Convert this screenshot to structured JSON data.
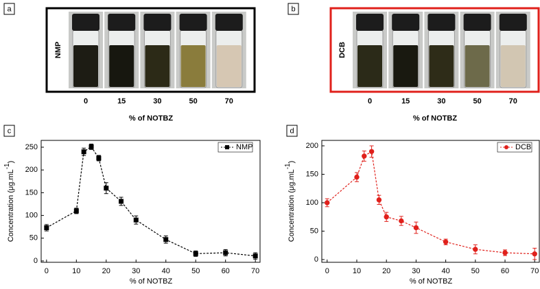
{
  "photo_panels": [
    {
      "label": "a",
      "solvent": "NMP",
      "color": "#000000",
      "vial_labels": [
        0,
        15,
        30,
        50,
        70
      ],
      "xlabel": "% of NOTBZ"
    },
    {
      "label": "b",
      "solvent": "DCB",
      "color": "#e0201b",
      "vial_labels": [
        0,
        15,
        30,
        50,
        70
      ],
      "xlabel": "% of NOTBZ"
    }
  ],
  "chart_data": [
    {
      "type": "line",
      "panel": "c",
      "xlabel": "% of NOTBZ",
      "ylabel": {
        "text": "Concentration (μg.mL",
        "superscript": "-1",
        "end": ")"
      },
      "x": [
        0,
        10,
        12.5,
        15,
        17.5,
        20,
        25,
        30,
        40,
        50,
        60,
        70
      ],
      "series": [
        {
          "name": "NMP",
          "color": "#000000",
          "marker": "square",
          "values": [
            73,
            110,
            240,
            251,
            226,
            160,
            131,
            90,
            47,
            16,
            18,
            11
          ],
          "errors": [
            7,
            6,
            8,
            6,
            6,
            12,
            9,
            9,
            8,
            6,
            7,
            7
          ]
        }
      ],
      "xlim": [
        -1.8,
        71.8
      ],
      "xticks": [
        0,
        10,
        20,
        30,
        40,
        50,
        60,
        70
      ],
      "ylim": [
        -3,
        265
      ],
      "yticks": [
        0,
        50,
        100,
        150,
        200,
        250
      ],
      "legend": "upper right"
    },
    {
      "type": "line",
      "panel": "d",
      "xlabel": "% of NOTBZ",
      "ylabel": {
        "text": "Concentration (μg.mL",
        "superscript": "-1",
        "end": ")"
      },
      "x": [
        0,
        10,
        12.5,
        15,
        17.5,
        20,
        25,
        30,
        40,
        50,
        60,
        70
      ],
      "series": [
        {
          "name": "DCB",
          "color": "#e0201b",
          "marker": "circle",
          "values": [
            100,
            145,
            182,
            190,
            105,
            75,
            68,
            56,
            31,
            18,
            12,
            10
          ],
          "errors": [
            7,
            8,
            9,
            10,
            8,
            8,
            8,
            10,
            5,
            8,
            5,
            10
          ]
        }
      ],
      "xlim": [
        -1.8,
        71.8
      ],
      "xticks": [
        0,
        10,
        20,
        30,
        40,
        50,
        60,
        70
      ],
      "ylim": [
        -4.8,
        209.6
      ],
      "yticks": [
        0,
        50,
        100,
        150,
        200
      ],
      "legend": "upper right"
    }
  ]
}
